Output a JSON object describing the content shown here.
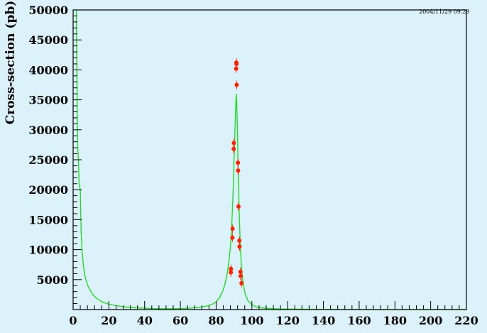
{
  "colors": {
    "background": "#dcf2fb",
    "frame": "#000000",
    "curve": "#22dd22",
    "points": "#ff2200"
  },
  "header": {
    "stamp": "2004/11/29   09.29"
  },
  "chart_data": {
    "type": "scatter",
    "ylabel": "Cross-section (pb)",
    "xlabel": "",
    "xlim": [
      0,
      220
    ],
    "ylim": [
      0,
      50000
    ],
    "xticks": [
      0,
      20,
      40,
      60,
      80,
      100,
      120,
      140,
      160,
      180,
      200,
      220
    ],
    "xtick_labels": [
      "0",
      "20",
      "40",
      "60",
      "80",
      "100",
      "120",
      "140",
      "160",
      "180",
      "200",
      "220"
    ],
    "yticks": [
      5000,
      10000,
      15000,
      20000,
      25000,
      30000,
      35000,
      40000,
      45000,
      50000
    ],
    "ytick_labels": [
      "5000",
      "10000",
      "15000",
      "20000",
      "25000",
      "30000",
      "35000",
      "40000",
      "45000",
      "50000"
    ],
    "grid": false,
    "legend": "none",
    "series": [
      {
        "type": "line",
        "x": [
          1.8,
          2,
          2.3,
          2.6,
          3,
          3.3,
          3.6,
          4,
          4.5,
          5,
          5.5,
          6,
          6.5,
          7,
          8,
          9,
          10,
          11,
          12,
          13,
          14,
          15,
          16,
          18,
          20,
          22,
          25,
          28,
          30,
          35,
          40,
          45,
          50,
          55,
          60,
          65,
          70,
          75,
          78,
          80,
          82,
          84,
          85,
          86,
          87,
          88,
          88.5,
          89,
          89.5,
          90,
          90.3,
          90.6,
          90.9,
          91.1,
          91.2,
          91.3,
          91.5,
          91.7,
          92,
          92.3,
          92.6,
          93,
          93.5,
          94,
          94.5,
          95,
          96,
          97,
          98,
          100,
          102,
          105,
          110,
          115,
          120,
          130,
          140,
          150,
          160,
          170,
          180,
          190,
          200,
          210,
          220
        ],
        "y": [
          50000,
          44000,
          33000,
          27000,
          24500,
          21500,
          20500,
          20000,
          13000,
          10000,
          8200,
          6800,
          5800,
          5200,
          4200,
          3500,
          3000,
          2500,
          2200,
          1900,
          1700,
          1500,
          1300,
          1100,
          900,
          780,
          600,
          480,
          420,
          300,
          220,
          170,
          140,
          140,
          170,
          230,
          340,
          600,
          900,
          1300,
          2000,
          3300,
          4300,
          5700,
          7700,
          10500,
          12800,
          15900,
          19800,
          24500,
          27400,
          30500,
          33500,
          35100,
          35700,
          36000,
          34800,
          32800,
          28500,
          24000,
          19800,
          15200,
          11000,
          8100,
          6100,
          4700,
          2900,
          2000,
          1400,
          800,
          500,
          300,
          180,
          110,
          80,
          50,
          35,
          25,
          20,
          15,
          12,
          10,
          8,
          6,
          5
        ]
      },
      {
        "type": "scatter",
        "x": [
          88.2,
          88.3,
          89.1,
          89.2,
          89.8,
          89.9,
          91.2,
          91.3,
          91.4,
          91.5,
          92.2,
          92.3,
          92.5,
          93,
          93.1,
          93.6,
          93.7,
          94.2
        ],
        "y": [
          6200,
          6800,
          12000,
          13500,
          26800,
          27800,
          40200,
          41200,
          41000,
          37500,
          24500,
          23200,
          17200,
          11500,
          10500,
          6300,
          5600,
          4400
        ]
      }
    ]
  }
}
